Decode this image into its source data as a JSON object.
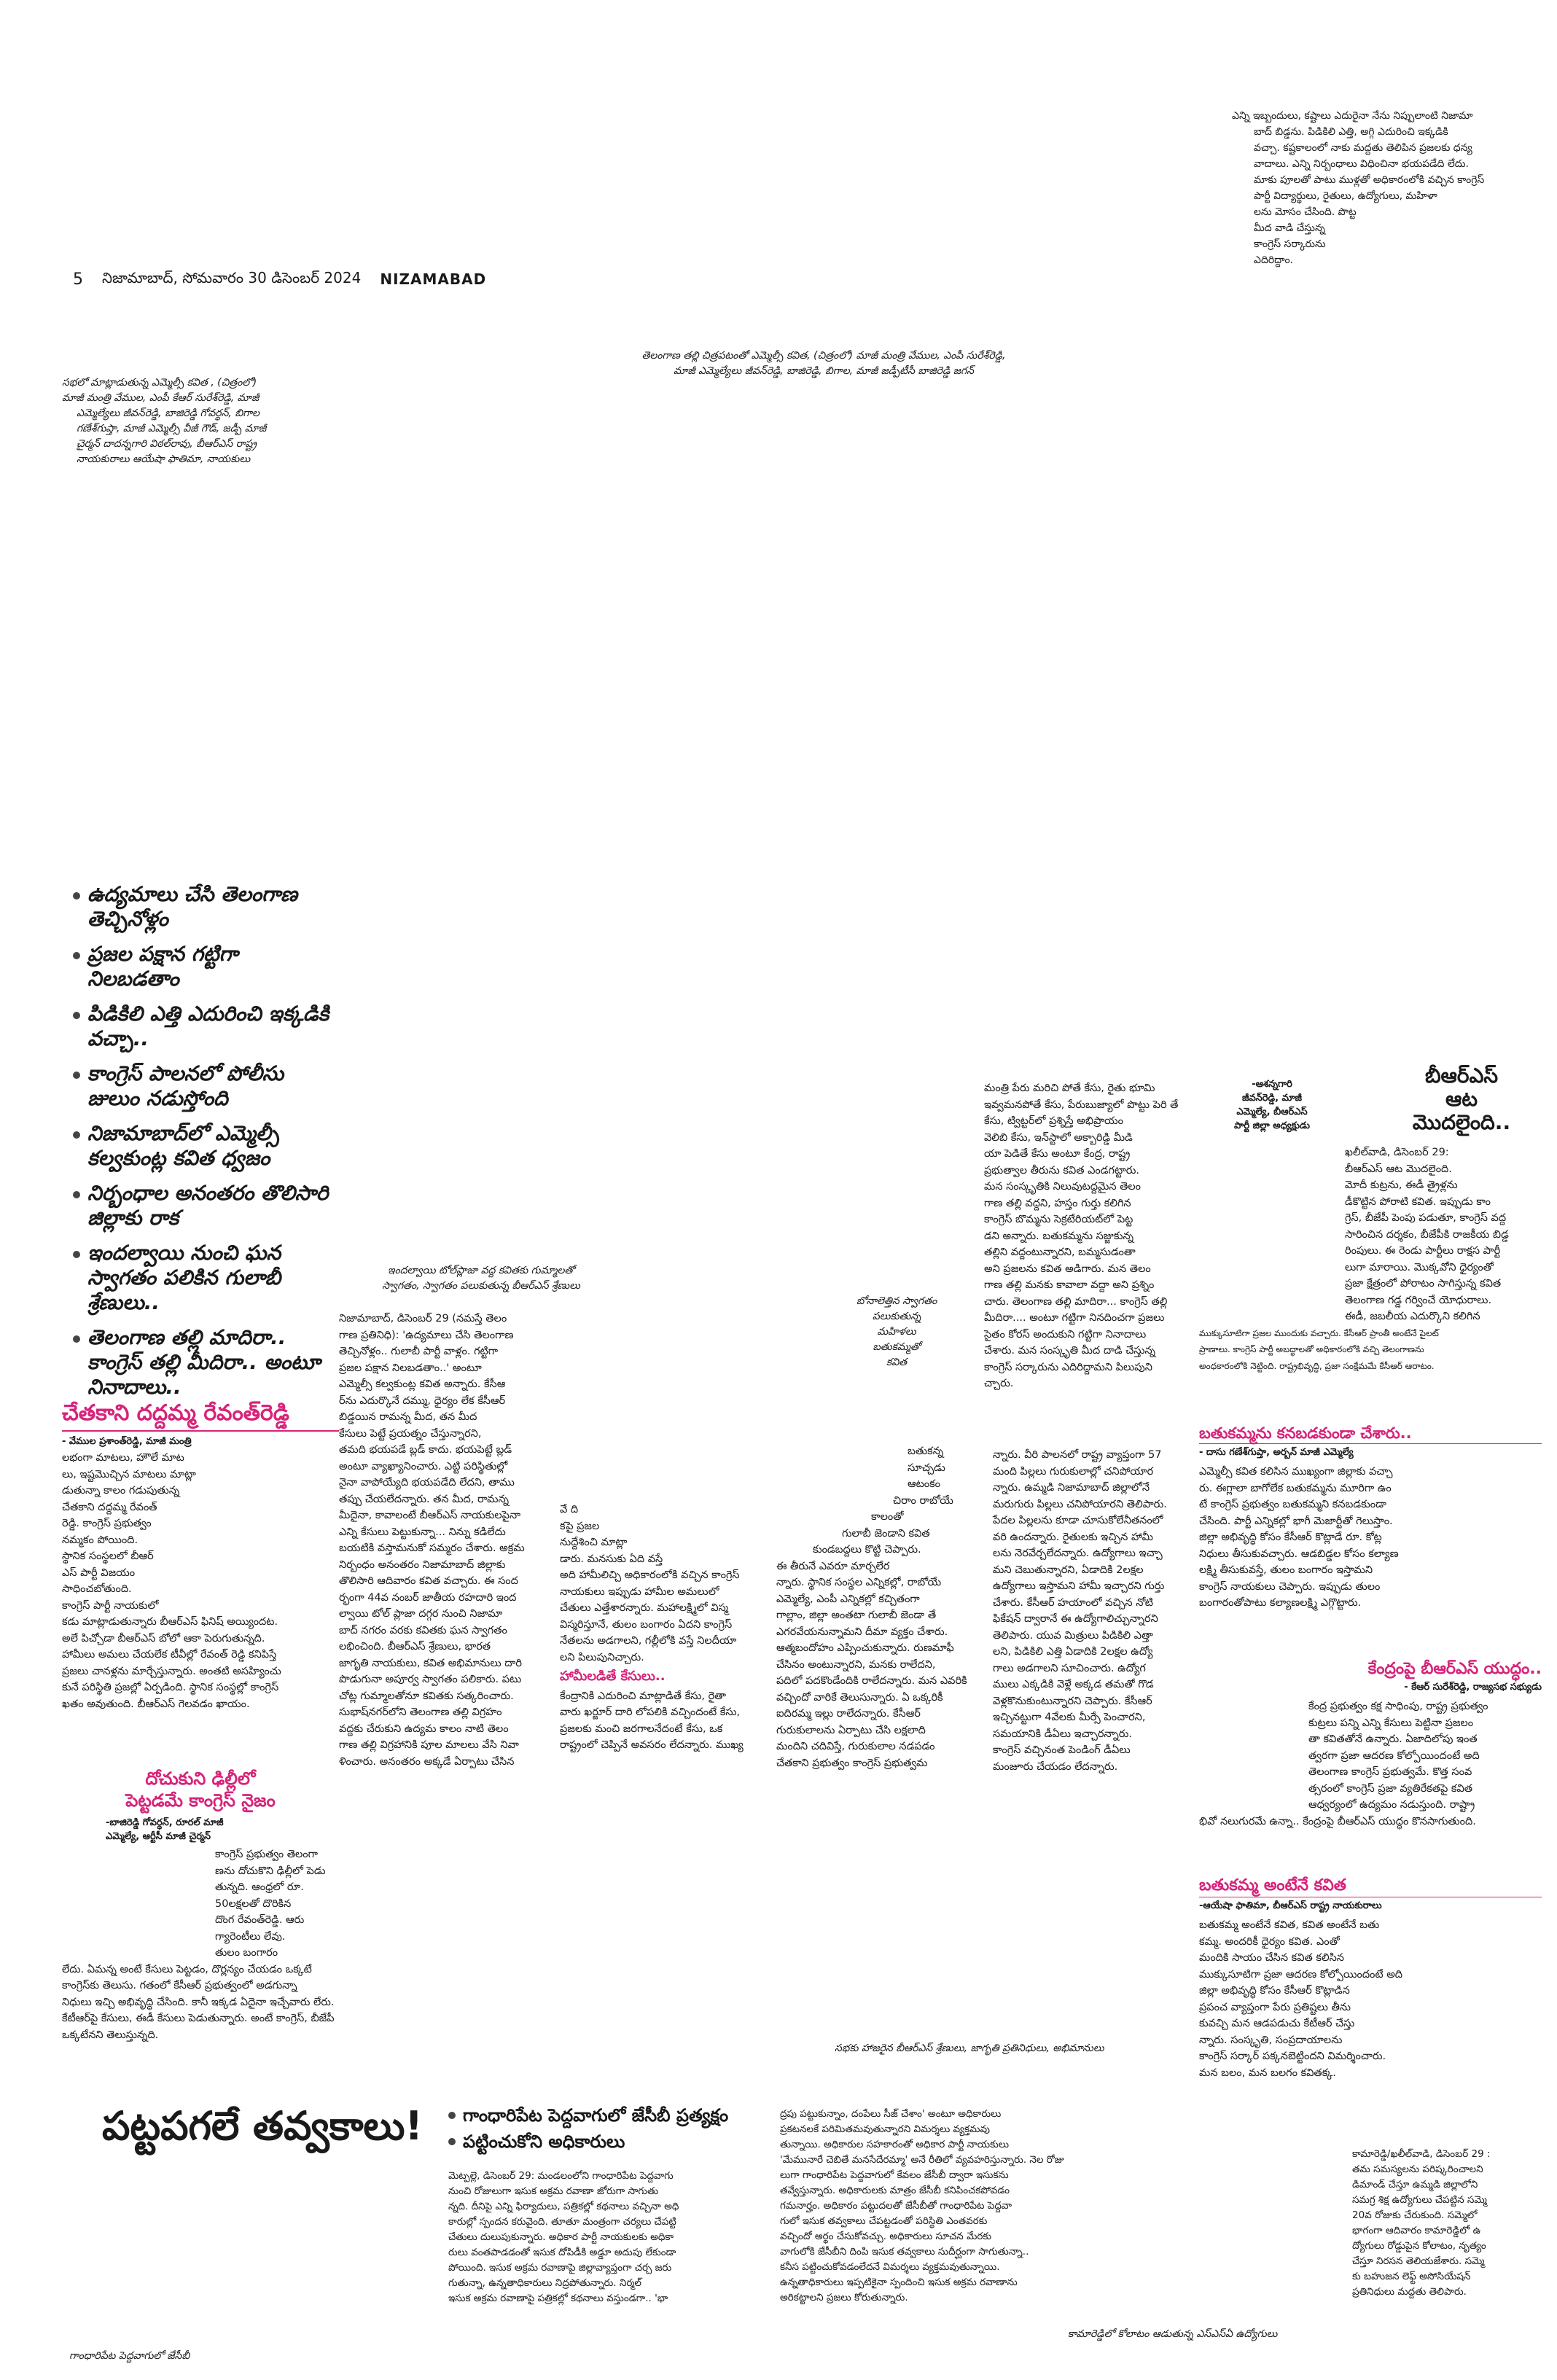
{
  "top_right_box": {
    "lines": [
      "ఎన్ని ఇబ్బందులు, కష్టాలు ఎదురైనా నేను నిప్పులాంటి నిజామా",
      "బాద్ బిడ్డను. పిడికిలి ఎత్తి, అగ్గి ఎదురించి ఇక్కడికి",
      "వచ్చా. కష్టకాలంలో నాకు మద్దతు తెలిపిన ప్రజలకు ధన్య",
      "వాదాలు. ఎన్ని నిర్బంధాలు విధించినా భయపడేది లేదు.",
      "మాకు పూలతో పాటు ముళ్లతో అధికారంలోకి వచ్చిన కాంగ్రెస్",
      "పార్టీ విద్యార్థులు, రైతులు, ఉద్యోగులు, మహిళా",
      "లను మోసం చేసింది. పొట్ట",
      "మీద వాడి చేస్తున్న",
      "కాంగ్రెస్ సర్కారును",
      "ఎదిరిద్దాం."
    ]
  },
  "masthead": {
    "page_number": "5",
    "dateline": "నిజామాబాద్, సోమవారం 30 డిసెంబర్ 2024",
    "section": "NIZAMABAD"
  },
  "photo_captions": {
    "left": [
      "సభలో మాట్లాడుతున్న ఎమ్మెల్సీ కవిత , (చిత్రంలో)",
      "మాజీ మంత్రి వేముల, ఎంపీ కేఆర్ సురేశ్‌రెడ్డి, మాజీ",
      "ఎమ్మెల్యేలు జీవన్‌రెడ్డి, బాజిరెడ్డి గోవర్ధన్, బిగాల",
      "గణేశ్‌గుప్తా, మాజీ ఎమ్మెల్సీ వీజీ గౌడ్, జడ్పీ మాజీ",
      "చైర్మన్ దాదన్నగారి విఠల్‌రావు, బీఆర్ఎస్ రాష్ట్ర",
      "నాయకురాలు ఆయేషా ఫాతిమా, నాయకులు"
    ],
    "center": [
      "తెలంగాణ తల్లి చిత్రపటంతో ఎమ్మెల్సీ కవిత, (చిత్రంలో) మాజీ మంత్రి వేముల, ఎంపీ సురేశ్‌రెడ్డి,",
      "మాజీ ఎమ్మెల్యేలు జీవన్‌రెడ్డి, బాజిరెడ్డి, బిగాల, మాజీ జడ్పీటీసీ బాజిరెడ్డి జగన్"
    ],
    "middle": [
      "ఇందల్వాయి టోల్‌ప్లాజా వద్ద కవితకు గుమ్మాలతో",
      "స్వాగతం, స్వాగతం పలుకుతున్న బీఆర్ఎస్ శ్రేణులు"
    ],
    "bottom_center": "సభకు హాజరైన బీఆర్ఎస్ శ్రేణులు, జాగృతి ప్రతినిధులు, అభిమానులు",
    "bottom_left": "గాంధారిపేట పెద్దవాగులో జేసీబీ",
    "bottom_right": "కామారెడ్డిలో కోలాటం ఆడుతున్న ఎస్ఎస్‌ఏ ఉద్యోగులు",
    "bonam": [
      "బోనాలెత్తిన స్వాగతం",
      "పలుకుతున్న",
      "మహిళలు",
      "",
      "బతుకమ్మతో",
      "కవిత"
    ]
  },
  "highlights": [
    "ఉద్యమాలు చేసి తెలంగాణ తెచ్చినోళ్లం",
    "ప్రజల పక్షాన గట్టిగా నిలబడతాం",
    "పిడికిలి ఎత్తి ఎదురించి ఇక్కడికి వచ్చా..",
    "కాంగ్రెస్ పాలనలో పోలీసు జులుం నడుస్తోంది",
    "నిజామాబాద్‌లో ఎమ్మెల్సీ కల్వకుంట్ల కవిత ధ్వజం",
    "నిర్బంధాల అనంతరం తొలిసారి జిల్లాకు రాక",
    "ఇందల్వాయి నుంచి ఘన స్వాగతం పలికిన గులాబీ శ్రేణులు..",
    "తెలంగాణ తల్లి మాదిరా.. కాంగ్రెస్ తల్లి మీదిరా.. అంటూ నినాదాలు.."
  ],
  "left_story": {
    "headline": "చేతకాని దద్దమ్మ రేవంత్‌రెడ్డి",
    "byline": "- వేముల ప్రశాంత్‌రెడ్డి, మాజీ మంత్రి",
    "lines": [
      "లభంగా మాటలు, హౌలే మాట",
      "లు, ఇష్టమొచ్చిన మాటలు మాట్లా",
      "డుతున్నా కాలం గడుపుతున్న",
      "చేతకాని దద్దమ్మ రేవంత్",
      "రెడ్డి. కాంగ్రెస్ ప్రభుత్వం",
      "నమ్మకం పోయింది.",
      "స్థానిక సంస్థలలో బీఆర్",
      "ఎస్ పార్టీ విజయం",
      "సాధించబోతుంది.",
      "కాంగ్రెస్ పార్టీ నాయకులో",
      "కడు మాట్లాడుతున్నారు బీఆర్ఎస్ ఫినిష్ అయ్యిందట.",
      "అలే పిచ్చోడా బీఆర్ఎస్ బోలో ఆకా పెరుగుతున్నది.",
      "హామీలు అమలు చేయలేక టీవీల్లో రేవంత్ రెడ్డి కనిపిస్తే",
      "ప్రజలు చానళ్లను మార్చేస్తున్నారు. అంతటి అసహ్యించు",
      "కునే పరిస్థితి ప్రజల్లో ఏర్పడింది. స్థానిక సంస్థల్లో కాంగ్రెస్",
      "ఖతం అవుతుంది. బీఆర్ఎస్ గెలవడం ఖాయం."
    ]
  },
  "left_story2": {
    "headline_line1": "దోచుకుని ఢిల్లీలో",
    "headline_line2": "పెట్టడమే కాంగ్రెస్ నైజం",
    "byline_line1": "-బాజిరెడ్డి గోవర్ధన్, రూరల్ మాజీ",
    "byline_line2": "ఎమ్మెల్యే, ఆర్టీసీ మాజీ చైర్మన్",
    "lines": [
      "కాంగ్రెస్ ప్రభుత్వం తెలంగా",
      "ణను దోచుకొని ఢిల్లీలో పెడు",
      "తున్నది. ఆంధ్రలో రూ.",
      "50లక్షలతో దొరికిన",
      "దొంగ రేవంత్‌రెడ్డి. ఆరు",
      "గ్యారెంటీలు లేవు.",
      "తులం బంగారం",
      "లేదు. ఏమన్న అంటే కేసులు పెట్టడం, దొర్లన్యం చేయడం ఒక్కటే",
      "కాంగ్రెస్‌కు తెలుసు. గతంలో కేసీఆర్ ప్రభుత్వంలో అడగున్నా",
      "నిధులు ఇచ్చి అభివృద్ధి చేసింది. కానీ ఇక్కడ ఏదైనా ఇచ్చేవారు లేరు.",
      "కేటీఆర్‌పై కేసులు, ఈడీ కేసులు పెడుతున్నారు. అంటే కాంగ్రెస్, బీజేపీ",
      "ఒక్కటేనని తెలుస్తున్నది."
    ]
  },
  "main_story": {
    "lines_col1": [
      "నిజామాబాద్, డిసెంబర్ 29 (నమస్తే తెలం",
      "గాణ ప్రతినిధి): 'ఉద్యమాలు చేసి తెలంగాణ",
      "తెచ్చినోళ్లం.. గులాబీ పార్టీ వాళ్లం. గట్టిగా",
      "ప్రజల పక్షాన నిలబడతాం..' అంటూ",
      "ఎమ్మెల్సీ కల్వకుంట్ల కవిత అన్నారు. కేసీఆ",
      "ర్‌ను ఎదుర్కొనే దమ్ము, ధైర్యం లేక కేసీఆర్",
      "బిడ్డయిన రామన్న మీద, తన మీద",
      "కేసులు పెట్టే ప్రయత్నం చేస్తున్నారని,",
      "తమది భయపడే బ్లడ్ కాదు. భయపెట్టే బ్లడ్",
      "అంటూ వ్యాఖ్యానించారు. ఎట్టి పరిస్థితుల్లో",
      "నైనా వాపోయ్యేది భయపడేది లేదని, తాము",
      "తప్పు చేయలేదన్నారు. తన మీద, రామన్న",
      "మీదైనా, కావాలంటే బీఆర్ఎస్ నాయకులపైనా",
      "ఎన్ని కేసులు పెట్టుకున్నా... నిన్ను కడిలేదు",
      "బయటికి వస్తామనుకో సమ్మరం చేశారు. అక్రమ",
      "నిర్బంధం అనంతరం నిజామాబాద్ జిల్లాకు",
      "తొలిసారి ఆదివారం కవిత వచ్చారు. ఈ సంద",
      "ర్భంగా 44వ నంబర్ జాతీయ రహదారి ఇంద",
      "ల్వాయి టోల్ ప్లాజా దగ్గర నుంచి నిజామా",
      "బాద్ నగరం వరకు కవితకు ఘన స్వాగతం",
      "లభించింది. బీఆర్ఎస్ శ్రేణులు, భారత",
      "జాగృతి నాయకులు, కవిత అభిమానులు దారి",
      "పొడుగునా అపూర్వ స్వాగతం పలికారు. పటు",
      "చోట్ల గుమ్మాలతోనూ కవితకు సత్కరించారు.",
      "సుభాష్‌నగర్‌లోని తెలంగాణ తల్లి విగ్రహం",
      "వద్దకు చేరుకుని ఉద్యమ కాలం నాటి తెలం",
      "గాణ తల్లి విగ్రహానికి పూల మాలలు వేసి నివా",
      "ళించారు. అనంతరం అక్కడే ఏర్పాటు చేసిన"
    ],
    "lines_col2": [
      "వే ది",
      "కపై ప్రజల",
      "నుద్దేశించి మాట్లా",
      "డారు. మనసుకు ఏది వస్తే",
      "అది హామీలిచ్చి అధికారంలోకి వచ్చిన కాంగ్రెస్",
      "నాయకులు ఇప్పుడు హామీల అమలులో",
      "చేతులు ఎత్తేశారన్నారు. మహాలక్ష్మిలో విస్మ",
      "విస్మరిస్తూనే, తులం బంగారం ఏదని కాంగ్రెస్",
      "నేతలను అడగాలని, గల్లీలోకి వస్తే నిలదీయా",
      "లని పిలుపునిచ్చారు."
    ],
    "subhead": "హామీలడితే కేసులు..",
    "lines_col2b": [
      "కేంద్రానికి ఎదురించి మాట్లాడితే కేసు, రైతా",
      "వారు ఖర్జూర్ దారి లోపలికి వచ్చిందంటే కేసు,",
      "ప్రజలకు మంచి జరగాలనేదంటే కేసు, ఒక",
      "రాష్ట్రంలో చెప్పినే అవసరం లేదన్నారు. ముఖ్య"
    ],
    "lines_col3": [
      "మంత్రి పేరు మరిచి పోతే కేసు, రైతు భూమి",
      "ఇవ్వమనపోతే కేసు, పేరుబుజ్యాలో పొట్టు పెరి తే",
      "కేసు, ట్విట్టర్‌లో ప్రశ్నిస్తే అభిప్రాయం",
      "వెలిబి కేసు, ఇన్‌స్టాలో అక్బారిడ్డి మీడి",
      "యా పెడితే కేసు అంటూ కేంద్ర, రాష్ట్ర",
      "ప్రభుత్వాల తీరును కవిత ఎండగట్టారు.",
      "మన సంస్కృతికి నిలువుటద్దమైన తెలం",
      "గాణ తల్లి వద్దని, హస్తం గుర్తు కలిగిన",
      "కాంగ్రెస్ బొమ్మను సెక్రటేరియట్‌లో పెట్ట",
      "డని అన్నారు. బతుకమ్మను సజ్జుకున్న",
      "తల్లిని వద్దంటున్నారని, బమ్మసుడంతా",
      "అని ప్రజలను కవిత అడిగారు. మన తెలం",
      "గాణ తల్లి మనకు కావాలా వద్దా అని ప్రశ్నిం",
      "చారు. తెలంగాణ తల్లి మాదిరా... కాంగ్రెస్ తల్లి",
      "మీదిరా.... అంటూ గట్టిగా నినదించగా ప్రజలు",
      "సైతం కోరస్ అందుకుని గట్టిగా నినాదాలు",
      "చేశారు. మన సంస్కృతి మీద దాడి చేస్తున్న",
      "కాంగ్రెస్ సర్కారును ఎదిరిద్దామని పిలుపుని",
      "చ్చారు."
    ],
    "lines_col3b": [
      "బతుకన్న",
      "సూచ్చడు",
      "ఆటంకం",
      "చిరాం రాబోయే",
      "కాలంతో",
      "గులాబీ జెండాని కవిత",
      "కుండబద్దలు కొట్టి చెప్పారు.",
      "ఈ తీరునే ఎవరూ మార్చలేర",
      "న్నారు. స్థానిక సంస్థల ఎన్నికల్లో, రాబోయే",
      "ఎమ్మెల్యే, ఎంపీ ఎన్నికల్లో కచ్చితంగా",
      "గాల్లాం, జిల్లా అంతటా గులాబీ జెండా తే",
      "ఎగరవేయనున్నామని దీమా వ్యక్తం చేశారు.",
      "ఆత్మబందోహం ఎప్పించుకున్నారు. రుణమాఫీ",
      "చేసినం అంటున్నారని, మనకు రాలేదని,",
      "పదిలో పదకొండేందికి రాలేదన్నారు. మన ఎవరికి",
      "వచ్చిందో వారికే తెలుసున్నారు. ఏ ఒక్కరికీ",
      "ఐదిరమ్మ ఇల్లు రాలేదన్నారు. కేసీఆర్",
      "గురుకులాలను ఏర్పాటు చేసి లక్షలాది",
      "మందిని చదివిస్తే, గురుకులాల నడపడం",
      "చేతకాని ప్రభుత్వం కాంగ్రెస్ ప్రభుత్వమ"
    ],
    "lines_col4": [
      "న్నారు. వీరి పాలనలో రాష్ట్ర వ్యాప్తంగా 57",
      "మంది పిల్లలు గురుకులాల్లో చనిపోయార",
      "న్నారు. ఉమ్మడి నిజామాబాద్ జిల్లాలోనే",
      "మరుగురు పిల్లలు చనిపోయారని తెలిపారు.",
      "పేదల పిల్లలను కూడా చూసుకోలేనీతనంలో",
      "వరి ఉందన్నారు. రైతులకు ఇచ్చిన హామీ",
      "లను నెరవేర్చలేదన్నారు. ఉద్యోగాలు ఇచ్చా",
      "మని చెబుతున్నారని, ఏడాదికి 2లక్షల",
      "ఉద్యోగాలు ఇస్తామని హామీ ఇచ్చారని గుర్తు",
      "చేశారు. కేసీఆర్ హయాంలో వచ్చిన నోటి",
      "ఫికేషన్ ద్వారానే ఈ ఉద్యోగాలిచ్చున్నారని",
      "తెలిపారు. యువ మిత్రులు పిడికిలి ఎత్తా",
      "లని, పిడికిలి ఎత్తి ఏడాదికి 2లక్షల ఉద్యో",
      "గాలు అడగాలని సూచించారు. ఉద్యోగ",
      "ములు ఎక్కడికి వెళ్లే అక్కడ తమతో గొడ",
      "వెళ్లకొనుకుంటున్నారని చెప్పారు. కేసీఆర్",
      "ఇచ్చినట్టుగా 4వేలకు మీర్సే పెంచారని,",
      "సమయానికి డీఏలు ఇచ్చారన్నారు.",
      "కాంగ్రెస్ వచ్చినంత పెండింగ్ డీఏలు",
      "మంజూరు చేయడం లేదన్నారు."
    ]
  },
  "brs_story": {
    "headline_line1": "బీఆర్ఎస్",
    "headline_line2": "ఆట",
    "headline_line3": "మొదలైంది..",
    "byline": [
      "-ఆశన్నగారి",
      "జీవన్‌రెడ్డి, మాజీ",
      "ఎమ్మెల్యే, బీఆర్ఎస్",
      "పార్టీ జిల్లా అధ్యక్షుడు"
    ],
    "lines": [
      "ఖలీల్‌వాడి, డిసెంబర్ 29:",
      "బీఆర్ఎస్ ఆట మొదలైంది.",
      "మోదీ కుట్రను, ఈడీ త్రైళ్లను",
      "డీకొట్టిన పోరాటి కవిత. ఇప్పుడు కాం",
      "గ్రెస్, బీజేపీ పెంపు పడుతూ, కాంగ్రెస్ వద్ద",
      "సారించిన దర్శకం, బీజేపీకి రాజకీయ బిడ్డ",
      "రింపులు. ఈ రెండు పార్టీలు రాక్షస పార్టీ",
      "లుగా మారాయి. మొక్కవోని ధైర్యంతో",
      "ప్రజా క్షేత్రంలో పోరాటం సాగిస్తున్న కవిత",
      "తెలంగాణ గడ్డ గర్వించే యోధురాలు.",
      "ఈడీ, జబలీయ ఎదుర్కొని కలిగిన",
      "ముక్కుసూటిగా ప్రజల ముందుకు వచ్చారు. కేసీఆర్ ప్రాంతీ అంటేనే పైలట్",
      "ప్రాణాలు. కాంగ్రెస్ పార్టీ అబద్ధాలతో అధికారంలోకి వచ్చి తెలంగాణను",
      "అంధకారంలోకి నెట్టింది. రాష్ట్రభివృద్ధి, ప్రజా సంక్షేమమే కేసీఆర్ ఆరాటం."
    ]
  },
  "bathukamma_story": {
    "headline": "బతుకమ్మను కనబడకుండా చేశారు..",
    "byline": "- దాసు గణేశ్‌గుప్తా, అర్బన్ మాజీ ఎమ్మెల్యే",
    "lines": [
      "ఎమ్మెల్సీ కవిత కలిసిన ముఖ్యంగా జిల్లాకు వచ్చా",
      "రు. ఈగ్లాలా బాగోలేక బతుకమ్మను మూరిగా ఉం",
      "టే కాంగ్రెస్ ప్రభుత్వం బతుకమ్మని కనబడకుండా",
      "చేసింది. పార్టీ ఎన్నికల్లో భాగీ మెజార్టీతో గెలుస్తాం.",
      "జిల్లా అభివృద్ధి కోసం కేసీఆర్ కొట్లాడే రూ. కోట్ల",
      "నిధులు తీసుకువచ్చారు. ఆడబిడ్డల కోసం కల్యాణ",
      "లక్ష్మి తీసుకువస్తే, తులం బంగారం ఇస్తామని",
      "కాంగ్రెస్ నాయకులు చెప్పారు. ఇప్పుడు తులం",
      "బంగారంతోపాటు కల్యాణలక్ష్మి ఎగ్గొట్టారు."
    ]
  },
  "kendram_story": {
    "headline": "కేంద్రంపై బీఆర్ఎస్ యుద్ధం..",
    "byline": "- కేఆర్ సురేశ్‌రెడ్డి, రాజ్యసభ సభ్యుడు",
    "lines": [
      "కేంద్ర ప్రభుత్వం కక్ష సాధింపు, రాష్ట్ర ప్రభుత్వం",
      "కుట్రలు పన్ని ఎన్ని కేసులు పెట్టినా ప్రజలం",
      "తా కవితతోనే ఉన్నారు. ఏజాదిలోపు ఇంత",
      "త్వరగా ప్రజా ఆదరణ కోల్పోయిందంటే అది",
      "తెలంగాణ కాంగ్రెస్ ప్రభుత్వమే. కొత్త సంవ",
      "త్సరంలో కాంగ్రెస్ ప్రజా వ్యతిరేకతపై కవిత",
      "ఆధ్వర్యంలో ఉద్యమం నడుస్తుంది. రాష్ట్రా",
      "భివో నలుగురమే ఉన్నా.. కేంద్రంపై బీఆర్ఎస్ యుద్ధం కొనసాగుతుంది."
    ]
  },
  "kavitha_story": {
    "headline": "బతుకమ్మ అంటేనే కవిత",
    "byline": "-ఆయేషా ఫాతిమా, బీఆర్ఎస్ రాష్ట్ర నాయకురాలు",
    "lines": [
      "బతుకమ్మ అంటేనే కవిత, కవిత అంటేనే బతు",
      "కమ్మ. అందరికీ ధైర్యం కవిత. ఎంతో",
      "మందికి సాయం చేసిన కవిత కలిసిన",
      "ముక్కుసూటిగా ప్రజా ఆదరణ కోల్పోయిందంటే అది",
      "జిల్లా అభివృద్ధి కోసం కేసీఆర్ కొట్లాడిన",
      "ప్రపంచ వ్యాప్తంగా పేరు ప్రతిష్టలు తీను",
      "కువచ్చి మన ఆడపడుచు కేటీఆర్ చేస్తు",
      "న్నారు. సంస్కృతి, సంప్రదాయాలను",
      "కాంగ్రెస్ సర్కార్ పక్కనబెట్టిందని విమర్శించారు.",
      "మన బలం, మన బలగం కవితక్క."
    ]
  },
  "bottom_story": {
    "big_headline": "పట్టపగలే తవ్వకాలు!",
    "sub1": "గాంధారిపేట పెద్దవాగులో జేసీబీ ప్రత్యక్షం",
    "sub2": "పట్టించుకోని అధికారులు",
    "lines_col1": [
      "మెట్పల్లె, డిసెంబర్ 29: మండలంలోని గాంధారిపేట పెద్దవాగు",
      "నుంచి రోజులుగా ఇసుక అక్రమ రవాణా జోరుగా సాగుతు",
      "న్నది. దీనిపై ఎన్ని ఫిర్యాదులు, పత్రికల్లో కథనాలు వచ్చినా అధి",
      "కారుల్లో స్పందన కరువైంది. తూతూ మంత్రంగా చర్యలు చేపట్టి",
      "చేతులు దులుపుకున్నారు. అధికార పార్టీ నాయకులకు అధికా",
      "రులు వంతపాడడంతో ఇసుక దోపిడీకి అడ్డూ అదుపు లేకుండా",
      "పోయింది. ఇసుక అక్రమ రవాణాపై జిల్లావ్యాప్తంగా చర్చ జరు",
      "గుతున్నా, ఉన్నతాధికారులు నిద్రపోతున్నారు. నిర్మల్",
      "ఇసుక అక్రమ రవాణాపై పత్రికల్లో కథనాలు వస్తుండగా.. 'భా"
    ],
    "lines_col2": [
      "ద్రపు పట్టుకున్నాం, దంపేలు సీజ్ చేశాం' అంటూ అధికారులు",
      "ప్రకటనలకే పరిమితమవుతున్నారని విమర్శలు వ్యక్తమవు",
      "తున్నాయి. అధికారుల సహకారంతో అధికార పార్టీ నాయకులు",
      "'మేమునారే చెబితే మనసేదేరమ్మా' అనే రీతిలో వ్యవహరిస్తున్నారు. నెల రోజు",
      "లుగా గాంధారిపేట పెద్దవాగులో కేవలం జేసీబీ ద్వారా ఇసుకను",
      "తవ్వేస్తున్నారు. అధికారులకు మాత్రం జేసీబీ కనిపించకపోవడం",
      "గమనార్హం. అధికారం పట్టుదలతో జేసీబీతో గాంధారిపేట పెద్దవా",
      "గులో ఇసుక తవ్వకాలు చేపట్టడంతో పరిస్థితి ఎంతవరకు",
      "వచ్చిందో అర్థం చేసుకోవచ్చు. అధికారులు సూచన మేరకు",
      "వాగులోకి జేసీబీని దింపి ఇసుక తవ్వకాలు సుదీర్ఘంగా సాగుతున్నా..",
      "కనీస పట్టించుకోవడంలేదనే విమర్శలు వ్యక్తమవుతున్నాయి.",
      "ఉన్నతాధికారులు ఇప్పటికైనా స్పందించి ఇసుక అక్రమ రవాణాను",
      "అరికట్టాలని ప్రజలు కోరుతున్నారు."
    ]
  },
  "bottom_right": {
    "lines": [
      "కామారెడ్డి/ఖలీల్‌వాడి, డిసెంబర్ 29 :",
      "తమ సమస్యలను పరిష్కరించాలని",
      "డిమాండ్ చేస్తూ ఉమ్మడి జిల్లాలోని",
      "సమగ్ర శిక్ష ఉద్యోగులు చేపట్టిన సమ్మె",
      "20వ రోజుకు చేరుకుంది. సమ్మెలో",
      "భాగంగా ఆదివారం కామారెడ్డిలో ఉ",
      "ద్యోగులు రోడ్డుపైన కోలాటం, నృత్యం",
      "చేస్తూ నిరసన తెలియజేశారు. సమ్మె",
      "కు బహుజన లెఫ్ట్ అసోసియేషన్",
      "ప్రతినిధులు మద్దతు తెలిపారు."
    ]
  }
}
